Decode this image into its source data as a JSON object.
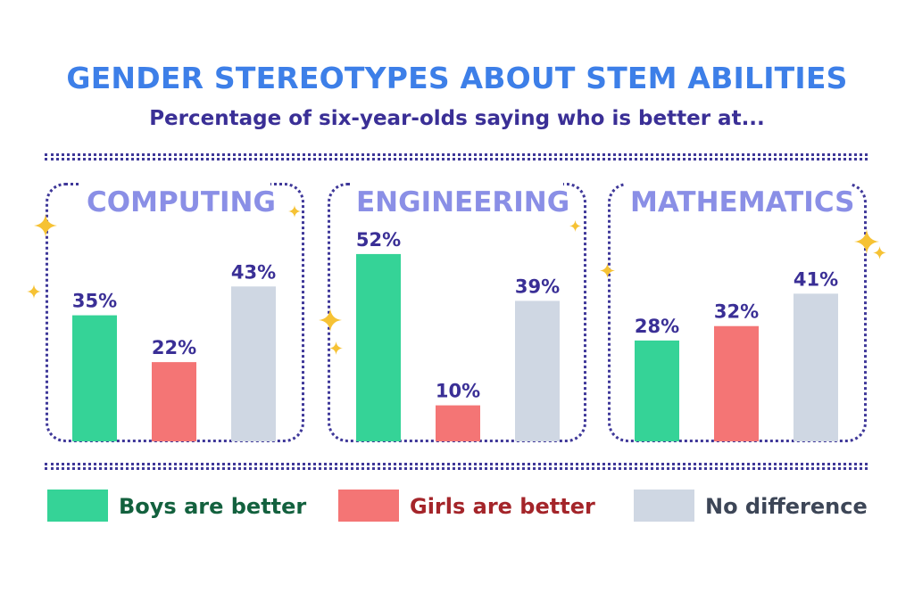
{
  "colors": {
    "title": "#3d7fe8",
    "subtitle": "#3a2f96",
    "boys": "#35d397",
    "girls": "#f47575",
    "none": "#cfd7e3",
    "panel_title": "#8a8fe6",
    "value_label": "#3a2f96",
    "boys_text": "#13613e",
    "girls_text": "#a4252a",
    "none_text": "#3d4657",
    "sparkle": "#f6c234"
  },
  "chart_data": {
    "type": "bar",
    "title": "GENDER STEREOTYPES ABOUT STEM ABILITIES",
    "subtitle": "Percentage of six-year-olds saying who is better at...",
    "groups": [
      "COMPUTING",
      "ENGINEERING",
      "MATHEMATICS"
    ],
    "series": [
      {
        "name": "Boys are better",
        "values": [
          35,
          52,
          28
        ]
      },
      {
        "name": "Girls are better",
        "values": [
          22,
          10,
          32
        ]
      },
      {
        "name": "No difference",
        "values": [
          43,
          39,
          41
        ]
      }
    ],
    "value_labels": [
      [
        "35%",
        "22%",
        "43%"
      ],
      [
        "52%",
        "10%",
        "39%"
      ],
      [
        "28%",
        "32%",
        "41%"
      ]
    ],
    "unit": "%",
    "ylim": [
      0,
      60
    ],
    "legend_position": "bottom",
    "grid": false
  },
  "legend": {
    "boys": "Boys are better",
    "girls": "Girls are better",
    "none": "No difference"
  },
  "decorations": {
    "sparkle_icon": "four-point-star"
  }
}
